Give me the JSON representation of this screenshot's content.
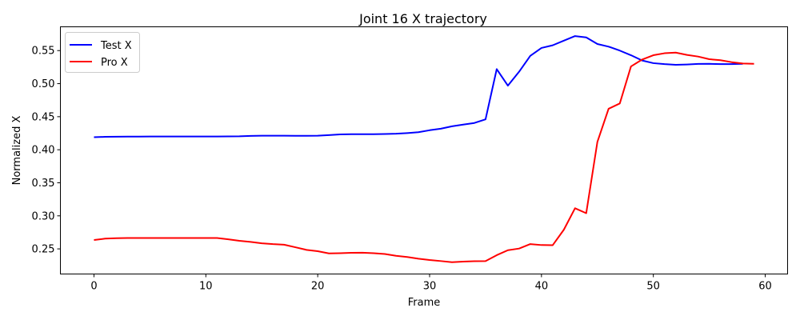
{
  "chart_data": {
    "type": "line",
    "title": "Joint 16 X trajectory",
    "xlabel": "Frame",
    "ylabel": "Normalized X",
    "xlim": [
      -3,
      62
    ],
    "ylim": [
      0.212,
      0.586
    ],
    "xticks": [
      0,
      10,
      20,
      30,
      40,
      50,
      60
    ],
    "yticks": [
      0.25,
      0.3,
      0.35,
      0.4,
      0.45,
      0.5,
      0.55
    ],
    "grid": false,
    "legend": "top-left",
    "series": [
      {
        "name": "Test X",
        "color": "#0000ff",
        "x": [
          0,
          1,
          2,
          3,
          4,
          5,
          6,
          7,
          8,
          9,
          10,
          11,
          12,
          13,
          14,
          15,
          16,
          17,
          18,
          19,
          20,
          21,
          22,
          23,
          24,
          25,
          26,
          27,
          28,
          29,
          30,
          31,
          32,
          33,
          34,
          35,
          36,
          37,
          38,
          39,
          40,
          41,
          42,
          43,
          44,
          45,
          46,
          47,
          48,
          49,
          50,
          51,
          52,
          53,
          54,
          55,
          56,
          57,
          58
        ],
        "values": [
          0.419,
          0.4195,
          0.4197,
          0.4198,
          0.4199,
          0.42,
          0.42,
          0.42,
          0.42,
          0.42,
          0.42,
          0.42,
          0.4202,
          0.4204,
          0.421,
          0.4212,
          0.4212,
          0.4212,
          0.4211,
          0.4211,
          0.4212,
          0.4222,
          0.4232,
          0.4235,
          0.4235,
          0.4235,
          0.4238,
          0.4242,
          0.4252,
          0.4265,
          0.4295,
          0.4318,
          0.4355,
          0.438,
          0.4405,
          0.446,
          0.522,
          0.497,
          0.518,
          0.542,
          0.554,
          0.558,
          0.565,
          0.572,
          0.57,
          0.56,
          0.556,
          0.55,
          0.543,
          0.535,
          0.531,
          0.5295,
          0.5285,
          0.529,
          0.5298,
          0.53,
          0.5295,
          0.5295,
          0.53
        ]
      },
      {
        "name": "Pro X",
        "color": "#ff0000",
        "x": [
          0,
          1,
          2,
          3,
          4,
          5,
          6,
          7,
          8,
          9,
          10,
          11,
          12,
          13,
          14,
          15,
          16,
          17,
          18,
          19,
          20,
          21,
          22,
          23,
          24,
          25,
          26,
          27,
          28,
          29,
          30,
          31,
          32,
          33,
          34,
          35,
          36,
          37,
          38,
          39,
          40,
          41,
          42,
          43,
          44,
          45,
          46,
          47,
          48,
          49,
          50,
          51,
          52,
          53,
          54,
          55,
          56,
          57,
          58,
          59
        ],
        "values": [
          0.2635,
          0.2655,
          0.2662,
          0.2665,
          0.2665,
          0.2665,
          0.2665,
          0.2665,
          0.2665,
          0.2665,
          0.2665,
          0.2665,
          0.2645,
          0.2622,
          0.2605,
          0.2585,
          0.2572,
          0.2563,
          0.2525,
          0.2485,
          0.2465,
          0.2432,
          0.2435,
          0.2441,
          0.2442,
          0.2435,
          0.2422,
          0.2395,
          0.2377,
          0.2352,
          0.2332,
          0.2316,
          0.2298,
          0.2307,
          0.2313,
          0.2315,
          0.2405,
          0.248,
          0.2505,
          0.2573,
          0.2558,
          0.2555,
          0.279,
          0.3115,
          0.304,
          0.412,
          0.462,
          0.47,
          0.526,
          0.5365,
          0.543,
          0.546,
          0.547,
          0.5435,
          0.541,
          0.537,
          0.5355,
          0.5325,
          0.5305,
          0.53
        ]
      }
    ]
  }
}
